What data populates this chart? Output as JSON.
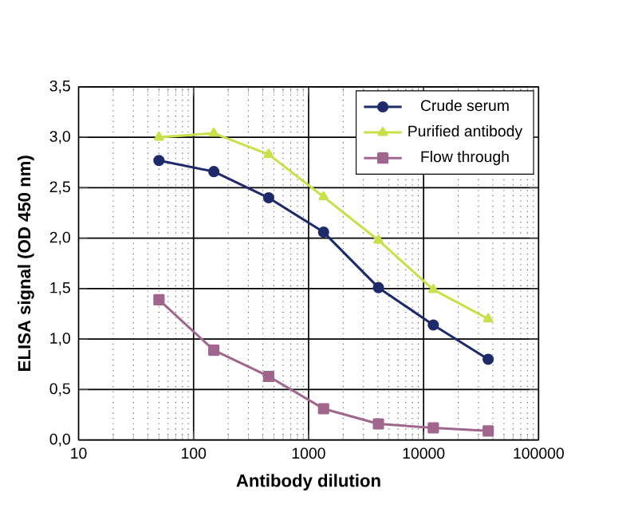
{
  "chart_data": {
    "type": "line",
    "xlabel": "Antibody dilution",
    "ylabel": "ELISA signal (OD 450 nm)",
    "x": [
      50,
      150,
      450,
      1350,
      4050,
      12150,
      36450
    ],
    "series": [
      {
        "name": "Crude serum",
        "color": "#1f2a6b",
        "marker": "circle",
        "values": [
          2.77,
          2.66,
          2.4,
          2.06,
          1.51,
          1.14,
          0.8
        ]
      },
      {
        "name": "Purified antibody",
        "color": "#c8e04a",
        "marker": "triangle",
        "values": [
          3.0,
          3.04,
          2.83,
          2.41,
          1.98,
          1.49,
          1.2
        ]
      },
      {
        "name": "Flow through",
        "color": "#a0668e",
        "marker": "square",
        "values": [
          1.39,
          0.89,
          0.63,
          0.31,
          0.16,
          0.12,
          0.09
        ]
      }
    ],
    "log": "x",
    "xlim": [
      10,
      100000
    ],
    "ylim": [
      0,
      3.5
    ],
    "xticks": [
      10,
      100,
      1000,
      10000,
      100000
    ],
    "yticks": [
      {
        "value": 0,
        "label": "0,0"
      },
      {
        "value": 0.5,
        "label": "0,5"
      },
      {
        "value": 1,
        "label": "1,0"
      },
      {
        "value": 1.5,
        "label": "1,5"
      },
      {
        "value": 2,
        "label": "2,0"
      },
      {
        "value": 2.5,
        "label": "2,5"
      },
      {
        "value": 3,
        "label": "3,0"
      },
      {
        "value": 3.5,
        "label": "3,5"
      }
    ],
    "grid": true,
    "legend": "top right",
    "line_style": "solid"
  }
}
